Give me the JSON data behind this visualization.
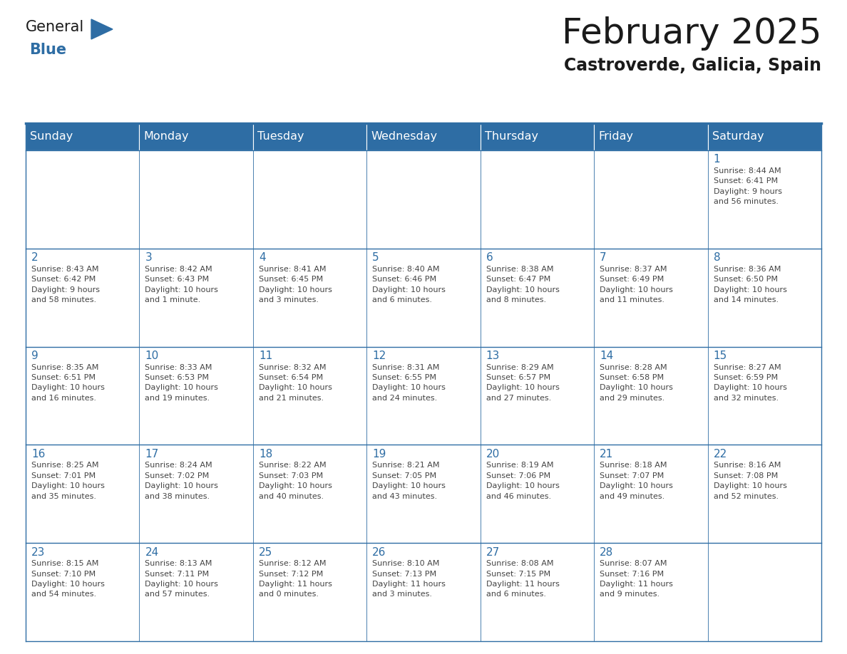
{
  "title": "February 2025",
  "subtitle": "Castroverde, Galicia, Spain",
  "days_of_week": [
    "Sunday",
    "Monday",
    "Tuesday",
    "Wednesday",
    "Thursday",
    "Friday",
    "Saturday"
  ],
  "header_bg": "#2E6DA4",
  "header_text": "#FFFFFF",
  "cell_bg": "#FFFFFF",
  "border_color": "#2E6DA4",
  "day_num_color": "#2E6DA4",
  "text_color": "#444444",
  "logo_general_color": "#1a1a1a",
  "logo_blue_color": "#2E6DA4",
  "weeks": [
    [
      {
        "day": null,
        "info": ""
      },
      {
        "day": null,
        "info": ""
      },
      {
        "day": null,
        "info": ""
      },
      {
        "day": null,
        "info": ""
      },
      {
        "day": null,
        "info": ""
      },
      {
        "day": null,
        "info": ""
      },
      {
        "day": 1,
        "info": "Sunrise: 8:44 AM\nSunset: 6:41 PM\nDaylight: 9 hours\nand 56 minutes."
      }
    ],
    [
      {
        "day": 2,
        "info": "Sunrise: 8:43 AM\nSunset: 6:42 PM\nDaylight: 9 hours\nand 58 minutes."
      },
      {
        "day": 3,
        "info": "Sunrise: 8:42 AM\nSunset: 6:43 PM\nDaylight: 10 hours\nand 1 minute."
      },
      {
        "day": 4,
        "info": "Sunrise: 8:41 AM\nSunset: 6:45 PM\nDaylight: 10 hours\nand 3 minutes."
      },
      {
        "day": 5,
        "info": "Sunrise: 8:40 AM\nSunset: 6:46 PM\nDaylight: 10 hours\nand 6 minutes."
      },
      {
        "day": 6,
        "info": "Sunrise: 8:38 AM\nSunset: 6:47 PM\nDaylight: 10 hours\nand 8 minutes."
      },
      {
        "day": 7,
        "info": "Sunrise: 8:37 AM\nSunset: 6:49 PM\nDaylight: 10 hours\nand 11 minutes."
      },
      {
        "day": 8,
        "info": "Sunrise: 8:36 AM\nSunset: 6:50 PM\nDaylight: 10 hours\nand 14 minutes."
      }
    ],
    [
      {
        "day": 9,
        "info": "Sunrise: 8:35 AM\nSunset: 6:51 PM\nDaylight: 10 hours\nand 16 minutes."
      },
      {
        "day": 10,
        "info": "Sunrise: 8:33 AM\nSunset: 6:53 PM\nDaylight: 10 hours\nand 19 minutes."
      },
      {
        "day": 11,
        "info": "Sunrise: 8:32 AM\nSunset: 6:54 PM\nDaylight: 10 hours\nand 21 minutes."
      },
      {
        "day": 12,
        "info": "Sunrise: 8:31 AM\nSunset: 6:55 PM\nDaylight: 10 hours\nand 24 minutes."
      },
      {
        "day": 13,
        "info": "Sunrise: 8:29 AM\nSunset: 6:57 PM\nDaylight: 10 hours\nand 27 minutes."
      },
      {
        "day": 14,
        "info": "Sunrise: 8:28 AM\nSunset: 6:58 PM\nDaylight: 10 hours\nand 29 minutes."
      },
      {
        "day": 15,
        "info": "Sunrise: 8:27 AM\nSunset: 6:59 PM\nDaylight: 10 hours\nand 32 minutes."
      }
    ],
    [
      {
        "day": 16,
        "info": "Sunrise: 8:25 AM\nSunset: 7:01 PM\nDaylight: 10 hours\nand 35 minutes."
      },
      {
        "day": 17,
        "info": "Sunrise: 8:24 AM\nSunset: 7:02 PM\nDaylight: 10 hours\nand 38 minutes."
      },
      {
        "day": 18,
        "info": "Sunrise: 8:22 AM\nSunset: 7:03 PM\nDaylight: 10 hours\nand 40 minutes."
      },
      {
        "day": 19,
        "info": "Sunrise: 8:21 AM\nSunset: 7:05 PM\nDaylight: 10 hours\nand 43 minutes."
      },
      {
        "day": 20,
        "info": "Sunrise: 8:19 AM\nSunset: 7:06 PM\nDaylight: 10 hours\nand 46 minutes."
      },
      {
        "day": 21,
        "info": "Sunrise: 8:18 AM\nSunset: 7:07 PM\nDaylight: 10 hours\nand 49 minutes."
      },
      {
        "day": 22,
        "info": "Sunrise: 8:16 AM\nSunset: 7:08 PM\nDaylight: 10 hours\nand 52 minutes."
      }
    ],
    [
      {
        "day": 23,
        "info": "Sunrise: 8:15 AM\nSunset: 7:10 PM\nDaylight: 10 hours\nand 54 minutes."
      },
      {
        "day": 24,
        "info": "Sunrise: 8:13 AM\nSunset: 7:11 PM\nDaylight: 10 hours\nand 57 minutes."
      },
      {
        "day": 25,
        "info": "Sunrise: 8:12 AM\nSunset: 7:12 PM\nDaylight: 11 hours\nand 0 minutes."
      },
      {
        "day": 26,
        "info": "Sunrise: 8:10 AM\nSunset: 7:13 PM\nDaylight: 11 hours\nand 3 minutes."
      },
      {
        "day": 27,
        "info": "Sunrise: 8:08 AM\nSunset: 7:15 PM\nDaylight: 11 hours\nand 6 minutes."
      },
      {
        "day": 28,
        "info": "Sunrise: 8:07 AM\nSunset: 7:16 PM\nDaylight: 11 hours\nand 9 minutes."
      },
      {
        "day": null,
        "info": ""
      }
    ]
  ],
  "fig_width": 11.88,
  "fig_height": 9.18,
  "dpi": 100
}
